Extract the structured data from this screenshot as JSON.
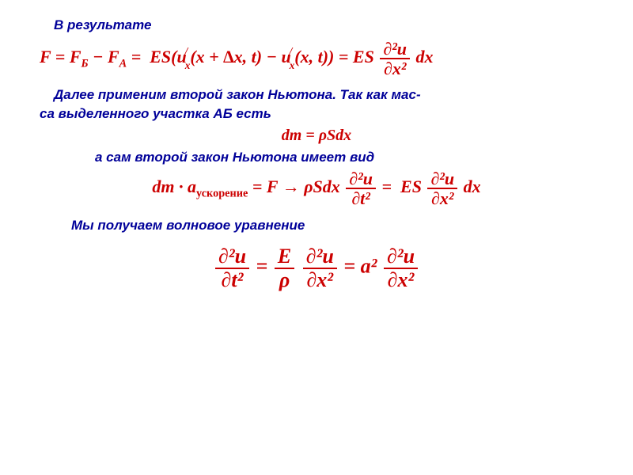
{
  "colors": {
    "text": "#000099",
    "equation": "#cc0000",
    "background": "#ffffff"
  },
  "typography": {
    "text_fontsize": 17,
    "text_weight": "bold",
    "text_style": "italic",
    "eq_font": "Cambria Math / Times",
    "eq_fontsize_main": 22,
    "eq_fontsize_small": 20,
    "eq_fontsize_final": 26
  },
  "lines": {
    "t1": "В результате",
    "t2a": "Далее применим второй закон Ньютона. Так как мас-",
    "t2b": "са выделенного участка АБ есть",
    "t3": "а сам второй закон Ньютона имеет вид",
    "t4": "Мы получаем волновое уравнение"
  },
  "eq": {
    "F": "F",
    "FB": "F",
    "FB_sub": "Б",
    "FA": "F",
    "FA_sub": "A",
    "eqsign": " = ",
    "minus": " − ",
    "ES": "ES",
    "lpar": "(",
    "rpar": ")",
    "u": "u",
    "x": "x",
    "slash": "/",
    "arg1a": "(x + ∆x, t)",
    "arg1b": "(x, t)",
    "dx": " dx",
    "p2u": "∂²u",
    "px2": "∂x²",
    "pt2": "∂t²",
    "dm": "dm",
    "rhoSdx": "ρSdx",
    "dmline": "dm = ρSdx",
    "dot": " · ",
    "a": "a",
    "a_sub": "ускорение",
    "arrow": "  →  ",
    "E": "E",
    "rho": "ρ",
    "asq": "a²"
  }
}
